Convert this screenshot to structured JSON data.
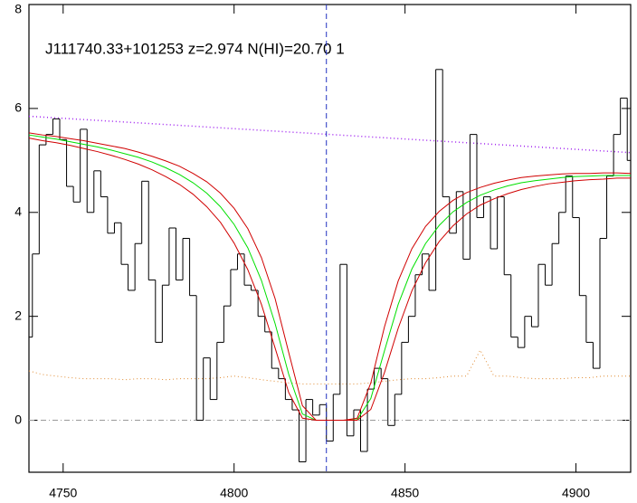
{
  "chart_data": {
    "type": "spectrum",
    "title": "J111740.33+101253 z=2.974 N(HI)=20.70 1",
    "xlim": [
      4740,
      4916
    ],
    "ylim": [
      -1,
      8
    ],
    "xticks": [
      4750,
      4800,
      4850,
      4900
    ],
    "yticks": [
      0,
      2,
      4,
      6,
      8
    ],
    "marker_x": 4827,
    "zero_line": 0,
    "spectrum": {
      "color": "#000000",
      "x": [
        4740,
        4742,
        4744,
        4746,
        4748,
        4750,
        4752,
        4754,
        4756,
        4758,
        4760,
        4762,
        4764,
        4766,
        4768,
        4770,
        4772,
        4774,
        4776,
        4778,
        4780,
        4782,
        4784,
        4786,
        4788,
        4790,
        4792,
        4794,
        4796,
        4798,
        4800,
        4802,
        4804,
        4806,
        4808,
        4810,
        4812,
        4814,
        4816,
        4818,
        4820,
        4822,
        4824,
        4826,
        4828,
        4830,
        4832,
        4834,
        4836,
        4838,
        4840,
        4842,
        4844,
        4846,
        4848,
        4850,
        4852,
        4854,
        4856,
        4858,
        4860,
        4862,
        4864,
        4866,
        4868,
        4870,
        4872,
        4874,
        4876,
        4878,
        4880,
        4882,
        4884,
        4886,
        4888,
        4890,
        4892,
        4894,
        4896,
        4898,
        4900,
        4902,
        4904,
        4906,
        4908,
        4910,
        4912,
        4914,
        4916
      ],
      "values": [
        1.6,
        3.2,
        5.3,
        5.5,
        5.8,
        5.4,
        4.5,
        4.2,
        5.6,
        4.0,
        4.8,
        4.3,
        3.6,
        3.8,
        3.0,
        2.5,
        3.4,
        4.6,
        2.7,
        1.5,
        2.6,
        3.7,
        2.7,
        3.5,
        2.4,
        0.0,
        1.2,
        0.4,
        1.5,
        2.2,
        2.9,
        3.2,
        2.6,
        2.5,
        2.0,
        1.7,
        1.0,
        0.8,
        0.4,
        0.2,
        -0.8,
        0.4,
        0.1,
        0.3,
        -0.4,
        0.5,
        3.0,
        -0.3,
        0.2,
        -0.6,
        0.6,
        1.0,
        0.8,
        -0.1,
        0.5,
        1.5,
        2.0,
        2.8,
        3.2,
        2.5,
        6.75,
        4.3,
        3.6,
        4.4,
        3.1,
        5.5,
        3.9,
        4.3,
        3.3,
        4.3,
        2.8,
        1.6,
        1.4,
        2.0,
        1.8,
        3.0,
        2.6,
        3.4,
        4.0,
        4.7,
        3.9,
        2.4,
        1.5,
        1.0,
        3.5,
        4.7,
        5.5,
        6.2,
        5.0
      ]
    },
    "model_x": [
      4740,
      4744,
      4748,
      4752,
      4756,
      4760,
      4764,
      4768,
      4772,
      4776,
      4780,
      4784,
      4788,
      4792,
      4796,
      4800,
      4804,
      4808,
      4812,
      4816,
      4820,
      4824,
      4828,
      4832,
      4836,
      4840,
      4844,
      4848,
      4852,
      4856,
      4860,
      4864,
      4868,
      4872,
      4876,
      4880,
      4884,
      4888,
      4892,
      4896,
      4900,
      4904,
      4908,
      4912,
      4916
    ],
    "models": [
      {
        "color": "#00e000",
        "values": [
          5.49,
          5.45,
          5.41,
          5.36,
          5.31,
          5.26,
          5.2,
          5.13,
          5.06,
          4.97,
          4.86,
          4.73,
          4.57,
          4.37,
          4.11,
          3.77,
          3.32,
          2.69,
          1.86,
          0.88,
          0.12,
          0,
          0,
          0,
          0.01,
          0.42,
          1.34,
          2.23,
          2.91,
          3.4,
          3.75,
          4.01,
          4.19,
          4.33,
          4.43,
          4.51,
          4.57,
          4.61,
          4.64,
          4.67,
          4.69,
          4.7,
          4.71,
          4.71,
          4.71
        ]
      },
      {
        "color": "#d00000",
        "values": [
          5.53,
          5.49,
          5.46,
          5.42,
          5.38,
          5.33,
          5.28,
          5.23,
          5.16,
          5.08,
          4.99,
          4.89,
          4.75,
          4.59,
          4.37,
          4.08,
          3.69,
          3.13,
          2.34,
          1.3,
          0.28,
          0,
          0,
          0,
          0.04,
          0.72,
          1.8,
          2.68,
          3.3,
          3.73,
          4.02,
          4.23,
          4.38,
          4.48,
          4.56,
          4.62,
          4.67,
          4.7,
          4.72,
          4.74,
          4.75,
          4.75,
          4.76,
          4.76,
          4.75
        ]
      },
      {
        "color": "#d00000",
        "values": [
          5.43,
          5.38,
          5.34,
          5.29,
          5.23,
          5.17,
          5.1,
          5.02,
          4.93,
          4.82,
          4.69,
          4.54,
          4.35,
          4.11,
          3.81,
          3.41,
          2.9,
          2.23,
          1.39,
          0.53,
          0.04,
          0,
          0,
          0,
          0,
          0.21,
          0.92,
          1.77,
          2.49,
          3.03,
          3.44,
          3.74,
          3.97,
          4.14,
          4.26,
          4.36,
          4.44,
          4.5,
          4.55,
          4.58,
          4.61,
          4.63,
          4.64,
          4.66,
          4.66
        ]
      }
    ],
    "error": {
      "color": "#e08a30",
      "values": [
        0.95,
        0.88,
        0.85,
        0.82,
        0.8,
        0.8,
        0.8,
        0.78,
        0.8,
        0.8,
        0.78,
        0.8,
        0.8,
        0.8,
        0.82,
        0.85,
        0.82,
        0.78,
        0.75,
        0.72,
        0.7,
        0.7,
        0.7,
        0.7,
        0.7,
        0.72,
        0.75,
        0.78,
        0.8,
        0.8,
        0.82,
        0.85,
        0.85,
        1.35,
        0.85,
        0.85,
        0.82,
        0.8,
        0.8,
        0.8,
        0.82,
        0.82,
        0.85,
        0.85,
        0.85
      ]
    },
    "continuum": {
      "color": "#a020f0",
      "x": [
        4740,
        4916
      ],
      "values": [
        5.85,
        5.15
      ]
    }
  }
}
